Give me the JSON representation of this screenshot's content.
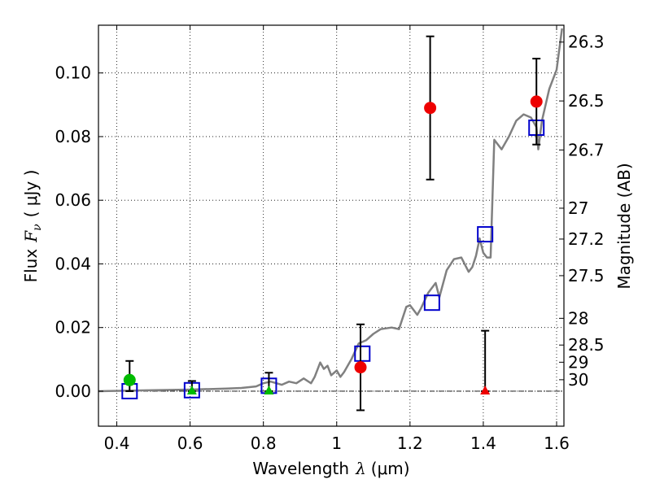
{
  "chart_data": {
    "type": "scatter",
    "xlabel_main": "Wavelength",
    "xlabel_symbol": "λ",
    "xlabel_unit": "(μm)",
    "ylabel_main": "Flux",
    "ylabel_symbol": "F",
    "ylabel_subscript": "ν",
    "ylabel_unit": "( μJy )",
    "right_ylabel": "Magnitude (AB)",
    "xlim": [
      0.35,
      1.62
    ],
    "ylim": [
      -0.011,
      0.115
    ],
    "x_ticks": [
      0.4,
      0.6,
      0.8,
      1.0,
      1.2,
      1.4,
      1.6
    ],
    "x_tick_labels": [
      "0.4",
      "0.6",
      "0.8",
      "1",
      "1.2",
      "1.4",
      "1.6"
    ],
    "y_ticks": [
      0.0,
      0.02,
      0.04,
      0.06,
      0.08,
      0.1
    ],
    "y_tick_labels": [
      "0.00",
      "0.02",
      "0.04",
      "0.06",
      "0.08",
      "0.10"
    ],
    "right_ticks": [
      {
        "flux": 0.1097,
        "label": "26.3"
      },
      {
        "flux": 0.0912,
        "label": "26.5"
      },
      {
        "flux": 0.0758,
        "label": "26.7"
      },
      {
        "flux": 0.0575,
        "label": "27"
      },
      {
        "flux": 0.0478,
        "label": "27.2"
      },
      {
        "flux": 0.0363,
        "label": "27.5"
      },
      {
        "flux": 0.0229,
        "label": "28"
      },
      {
        "flux": 0.0145,
        "label": "28.5"
      },
      {
        "flux": 0.0091,
        "label": "29"
      },
      {
        "flux": 0.0036,
        "label": "30"
      }
    ],
    "model_sed": {
      "name": "model SED",
      "color": "#808080",
      "x": [
        0.35,
        0.5,
        0.6,
        0.7,
        0.74,
        0.78,
        0.8,
        0.82,
        0.85,
        0.87,
        0.89,
        0.91,
        0.93,
        0.94,
        0.955,
        0.965,
        0.975,
        0.985,
        1.0,
        1.01,
        1.02,
        1.04,
        1.06,
        1.08,
        1.1,
        1.12,
        1.15,
        1.17,
        1.19,
        1.2,
        1.22,
        1.23,
        1.25,
        1.27,
        1.28,
        1.3,
        1.32,
        1.34,
        1.36,
        1.37,
        1.38,
        1.39,
        1.4,
        1.41,
        1.42,
        1.43,
        1.45,
        1.47,
        1.49,
        1.51,
        1.53,
        1.545,
        1.55,
        1.56,
        1.58,
        1.6,
        1.615
      ],
      "y": [
        0.0,
        0.0003,
        0.0005,
        0.0008,
        0.001,
        0.0015,
        0.0025,
        0.003,
        0.002,
        0.003,
        0.0025,
        0.004,
        0.0025,
        0.0045,
        0.009,
        0.007,
        0.008,
        0.005,
        0.0065,
        0.0045,
        0.006,
        0.01,
        0.015,
        0.016,
        0.018,
        0.0195,
        0.02,
        0.0195,
        0.0265,
        0.027,
        0.024,
        0.026,
        0.031,
        0.034,
        0.0295,
        0.038,
        0.0415,
        0.042,
        0.0375,
        0.039,
        0.0425,
        0.048,
        0.0435,
        0.042,
        0.042,
        0.079,
        0.076,
        0.08,
        0.085,
        0.087,
        0.086,
        0.083,
        0.076,
        0.085,
        0.095,
        0.101,
        0.114
      ]
    },
    "points": [
      {
        "series": "green",
        "color": "#00bb00",
        "marker": "circle",
        "x": 0.435,
        "y": 0.0035,
        "err_low": 0.0,
        "err_high": 0.0095
      },
      {
        "series": "green",
        "color": "#00bb00",
        "marker": "triangle",
        "x": 0.605,
        "y": 0.0,
        "err_low": 0.0,
        "err_high": 0.0032
      },
      {
        "series": "green",
        "color": "#00bb00",
        "marker": "triangle",
        "x": 0.815,
        "y": 0.0,
        "err_low": 0.0,
        "err_high": 0.0058
      },
      {
        "series": "red",
        "color": "#ee0000",
        "marker": "circle",
        "x": 1.065,
        "y": 0.0075,
        "err_low": -0.006,
        "err_high": 0.021
      },
      {
        "series": "red",
        "color": "#ee0000",
        "marker": "circle",
        "x": 1.255,
        "y": 0.089,
        "err_low": 0.0665,
        "err_high": 0.1115
      },
      {
        "series": "red",
        "color": "#ee0000",
        "marker": "triangle",
        "x": 1.405,
        "y": 0.0,
        "err_low": 0.0,
        "err_high": 0.019
      },
      {
        "series": "red",
        "color": "#ee0000",
        "marker": "circle",
        "x": 1.545,
        "y": 0.091,
        "err_low": 0.0775,
        "err_high": 0.1045
      }
    ],
    "model_boxes": {
      "name": "model band fluxes",
      "color": "#0000cc",
      "x": [
        0.435,
        0.605,
        0.815,
        1.07,
        1.26,
        1.405,
        1.545
      ],
      "y": [
        0.0,
        0.0003,
        0.0017,
        0.0118,
        0.0278,
        0.0493,
        0.0828
      ]
    }
  }
}
